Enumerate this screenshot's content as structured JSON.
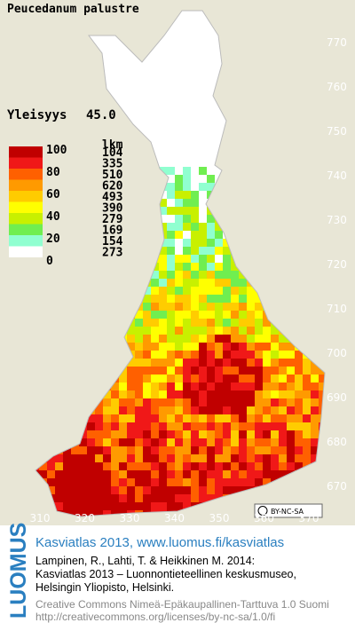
{
  "map": {
    "title": "Peucedanum palustre",
    "index_label": "Yleisyys",
    "index_value": "45.0",
    "legend": {
      "ticks": [
        100,
        80,
        60,
        40,
        20,
        0
      ],
      "count_header": "lkm",
      "counts": [
        104,
        335,
        510,
        620,
        493,
        390,
        279,
        169,
        154,
        273
      ],
      "colors": [
        "#c00000",
        "#f01818",
        "#ff6000",
        "#ff9a00",
        "#ffcc00",
        "#ffff00",
        "#c8f000",
        "#70ee50",
        "#90ffd0",
        "#ffffff"
      ]
    },
    "y_axis_ticks": [
      770,
      760,
      750,
      740,
      730,
      720,
      710,
      700,
      690,
      680,
      670
    ],
    "x_axis_ticks": [
      310,
      320,
      330,
      340,
      350,
      360,
      370
    ],
    "license_badge": "BY-NC-SA"
  },
  "footer": {
    "brand": "LUOMUS",
    "headline": "Kasviatlas 2013, www.luomus.fi/kasviatlas",
    "citation": [
      "Lampinen, R., Lahti, T. & Heikkinen M. 2014:",
      "Kasviatlas 2013 – Luonnontieteellinen keskusmuseo,",
      "Helsingin Yliopisto, Helsinki."
    ],
    "license": [
      "Creative Commons Nimeä-Epäkaupallinen-Tarttuva 1.0 Suomi",
      "http://creativecommons.org/licenses/by-nc-sa/1.0/fi"
    ]
  }
}
